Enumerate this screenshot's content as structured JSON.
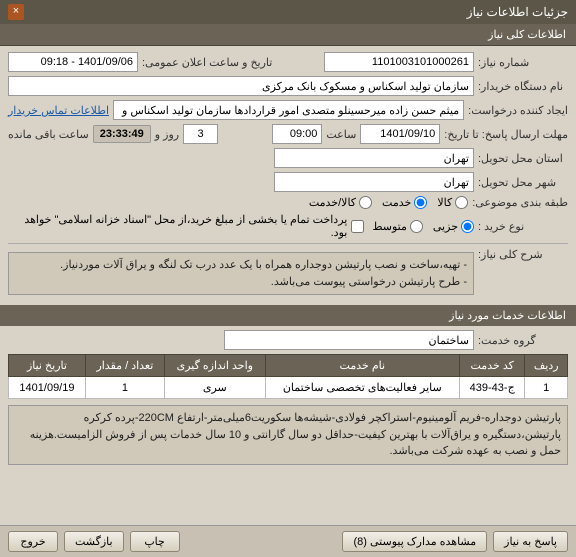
{
  "window": {
    "title": "جزئیات اطلاعات نیاز",
    "close_glyph": "×"
  },
  "tab": {
    "label": "اطلاعات کلی نیاز"
  },
  "fields": {
    "need_no_label": "شماره نیاز:",
    "need_no": "1101003101000261",
    "public_datetime_label": "تاریخ و ساعت اعلان عمومی:",
    "public_datetime": "1401/09/06 - 09:18",
    "buyer_org_label": "نام دستگاه خریدار:",
    "buyer_org": "سازمان تولید اسکناس و مسکوک بانک مرکزی",
    "creator_label": "ایجاد کننده درخواست:",
    "creator": "میثم حسن زاده میرحسینلو متصدی امور قراردادها سازمان تولید اسکناس و مس",
    "contact_link": "اطلاعات تماس خریدار",
    "reply_until_label": "مهلت ارسال پاسخ: تا تاریخ:",
    "reply_until_date": "1401/09/10",
    "time_label": "ساعت",
    "reply_until_time": "09:00",
    "and_label": "و",
    "days_label": "روز و",
    "days_remaining": "3",
    "time_remaining": "23:33:49",
    "time_remaining_suffix": "ساعت باقی مانده",
    "delivery_province_label": "استان محل تحویل:",
    "delivery_province": "تهران",
    "delivery_city_label": "شهر محل تحویل:",
    "delivery_city": "تهران",
    "category_label": "طبقه بندی موضوعی:",
    "cat_goods": "کالا",
    "cat_service": "خدمت",
    "cat_both": "کالا/خدمت",
    "buy_type_label": "نوع خرید :",
    "buy_partial": "جزیی",
    "buy_medium": "متوسط",
    "pay_note_checkbox": "پرداخت تمام یا بخشی از مبلغ خرید،از محل \"اسناد خزانه اسلامی\" خواهد بود.",
    "keywords_label": "شرح کلی نیاز:",
    "keywords_text": "- تهیه،ساخت و نصب پارتیشن دوجداره همراه با یک عدد درب تک لنگه و یراق آلات موردنیاز.\n- طرح پارتیشن درخواستی پیوست می‌باشد."
  },
  "service_section": {
    "header": "اطلاعات خدمات مورد نیاز",
    "group_label": "گروه خدمت:",
    "group_value": "ساختمان"
  },
  "table": {
    "cols": [
      "ردیف",
      "کد خدمت",
      "نام خدمت",
      "واحد اندازه گیری",
      "تعداد / مقدار",
      "تاریخ نیاز"
    ],
    "rows": [
      [
        "1",
        "ج-43-439",
        "سایر فعالیت‌های تخصصی ساختمان",
        "سری",
        "1",
        "1401/09/19"
      ]
    ]
  },
  "detail_box": {
    "text": "پارتیشن دوجداره-فریم آلومینیوم-استراکچر فولادی-شیشه‌ها سکوریت6میلی‌متر-ارتفاع 220CM-پرده کرکره پارتیشن،دستگیره و یراق‌آلات با بهترین کیفیت-حداقل دو سال گارانتی و 10 سال خدمات پس از فروش الزامیست.هزینه حمل و نصب به عهده شرکت می‌باشد."
  },
  "footer": {
    "reply_btn": "پاسخ به نیاز",
    "attachments_btn": "مشاهده مدارک پیوستی (8)",
    "print_btn": "چاپ",
    "back_btn": "بازگشت",
    "exit_btn": "خروج"
  },
  "colors": {
    "header_bg": "#6b6456",
    "header_fg": "#ffffff",
    "page_bg": "#d8d2c7",
    "box_bg": "#d0c9ba",
    "link": "#1a5aa8"
  }
}
